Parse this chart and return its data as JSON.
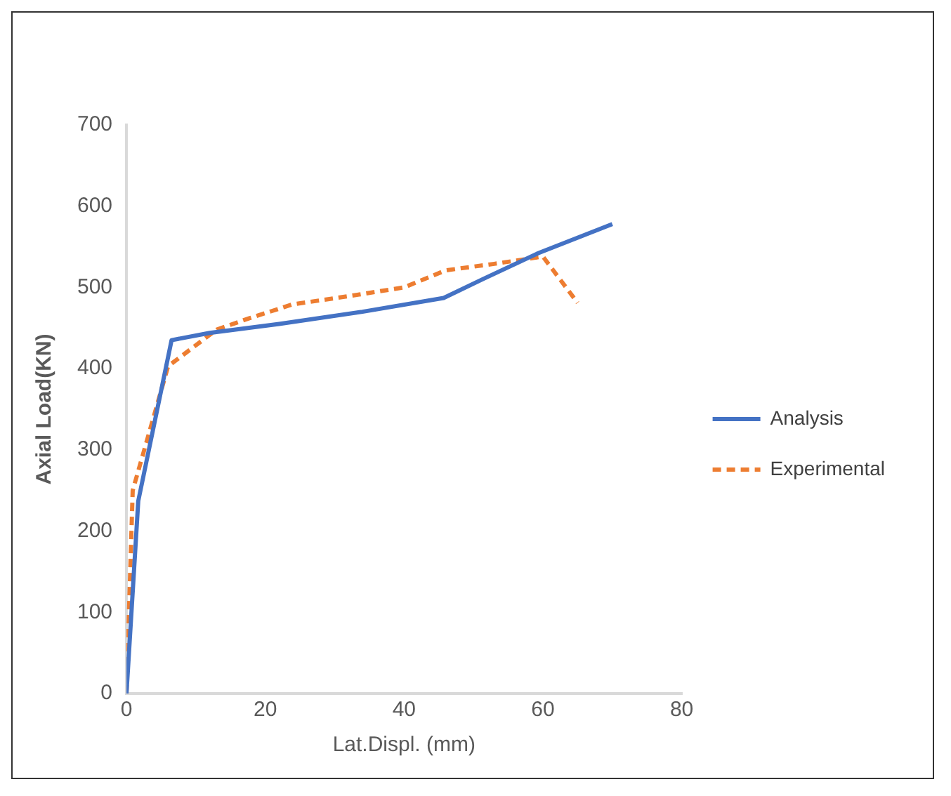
{
  "chart_data": {
    "type": "line",
    "xlabel": "Lat.Displ. (mm)",
    "ylabel": "Axial Load(KN)",
    "xlim": [
      0,
      80
    ],
    "xticks": [
      0,
      20,
      40,
      60,
      80
    ],
    "ylim": [
      0,
      700
    ],
    "yticks": [
      0,
      100,
      200,
      300,
      400,
      500,
      600,
      700
    ],
    "grid": false,
    "legend": "right",
    "marker": "none",
    "series": [
      {
        "name": "Analysis",
        "color": "#4472c4",
        "line_style": "solid",
        "x": [
          0,
          1.7,
          6.5,
          12,
          22,
          34,
          45.7,
          51.3,
          59.3,
          70
        ],
        "values": [
          0,
          237,
          435,
          444,
          455,
          470,
          487,
          510,
          542,
          578
        ]
      },
      {
        "name": "Experimental",
        "color": "#ed7d31",
        "line_style": "dashed",
        "x": [
          0,
          0.9,
          6,
          13,
          17.7,
          23.9,
          32.6,
          40,
          46,
          53,
          60,
          65
        ],
        "values": [
          0,
          250,
          403,
          448,
          462,
          479,
          490,
          500,
          521,
          529,
          538,
          481
        ]
      }
    ]
  }
}
